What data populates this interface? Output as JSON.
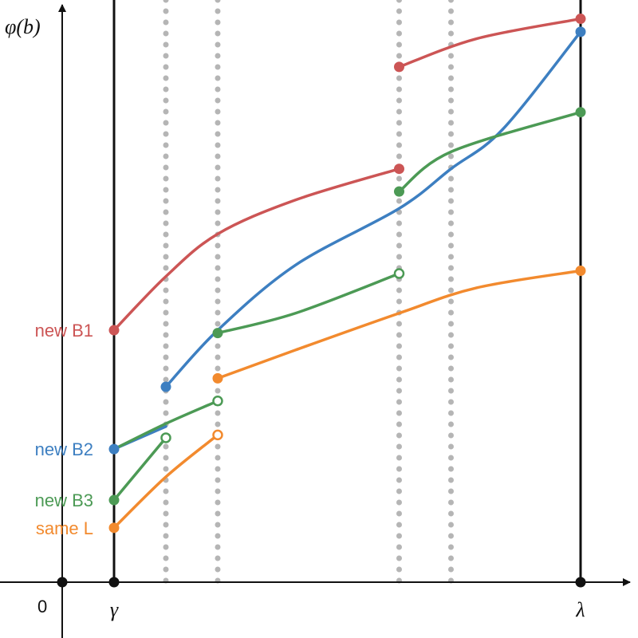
{
  "chart_data": {
    "type": "line",
    "title": "",
    "ylabel": "φ(b)",
    "xlabel": "",
    "origin_label": "0",
    "x_tick_labels": [
      {
        "x": 1,
        "label": "γ"
      },
      {
        "x": 10,
        "label": "λ"
      }
    ],
    "verticals": {
      "solid": [
        1,
        10
      ],
      "dotted": [
        2,
        3,
        6.5,
        7.5
      ]
    },
    "xlim": [
      -0.5,
      11.5
    ],
    "ylim": [
      -0.1,
      10.0
    ],
    "y_labels": [
      {
        "text": "new B1",
        "color": "#cc5555",
        "y": 4.45
      },
      {
        "text": "new B2",
        "color": "#3d7fc1",
        "y": 2.35
      },
      {
        "text": "new B3",
        "color": "#4c9a55",
        "y": 1.45
      },
      {
        "text": "same L",
        "color": "#f28a2e",
        "y": 0.96
      }
    ],
    "series": [
      {
        "name": "new B1",
        "color": "#cc5555",
        "segments": [
          {
            "points": [
              [
                1,
                4.45
              ],
              [
                2,
                5.4
              ],
              [
                3,
                6.15
              ],
              [
                4.5,
                6.75
              ],
              [
                6.5,
                7.3
              ]
            ],
            "start": "filled",
            "end": "filled"
          },
          {
            "points": [
              [
                6.5,
                9.1
              ],
              [
                8,
                9.6
              ],
              [
                10,
                9.95
              ]
            ],
            "start": "filled",
            "end": "filled"
          }
        ]
      },
      {
        "name": "new B2",
        "color": "#3d7fc1",
        "segments": [
          {
            "points": [
              [
                1,
                2.35
              ],
              [
                2,
                2.75
              ]
            ],
            "start": "filled",
            "end": "none"
          },
          {
            "points": [
              [
                2,
                3.45
              ],
              [
                3,
                4.45
              ],
              [
                4.5,
                5.6
              ],
              [
                6.5,
                6.6
              ],
              [
                7.5,
                7.3
              ],
              [
                8.5,
                8.0
              ],
              [
                10,
                9.72
              ]
            ],
            "start": "filled",
            "end": "filled"
          }
        ]
      },
      {
        "name": "new B3",
        "color": "#4c9a55",
        "segments": [
          {
            "points": [
              [
                1,
                1.45
              ],
              [
                2,
                2.55
              ]
            ],
            "start": "filled",
            "end": "open"
          },
          {
            "points": [
              [
                1,
                2.35
              ],
              [
                2,
                2.8
              ],
              [
                3,
                3.2
              ]
            ],
            "start": "none",
            "end": "open"
          },
          {
            "points": [
              [
                3,
                4.4
              ],
              [
                4.5,
                4.75
              ],
              [
                6.5,
                5.45
              ]
            ],
            "start": "filled",
            "end": "open"
          },
          {
            "points": [
              [
                6.5,
                6.9
              ],
              [
                7.5,
                7.6
              ],
              [
                10,
                8.3
              ]
            ],
            "start": "filled",
            "end": "filled"
          }
        ]
      },
      {
        "name": "same L",
        "color": "#f28a2e",
        "segments": [
          {
            "points": [
              [
                1,
                0.96
              ],
              [
                2,
                1.86
              ],
              [
                3,
                2.6
              ]
            ],
            "start": "filled",
            "end": "open"
          },
          {
            "points": [
              [
                3,
                3.6
              ],
              [
                4.5,
                4.1
              ],
              [
                6.5,
                4.75
              ],
              [
                8,
                5.2
              ],
              [
                10,
                5.5
              ]
            ],
            "start": "filled",
            "end": "filled"
          }
        ]
      }
    ]
  }
}
